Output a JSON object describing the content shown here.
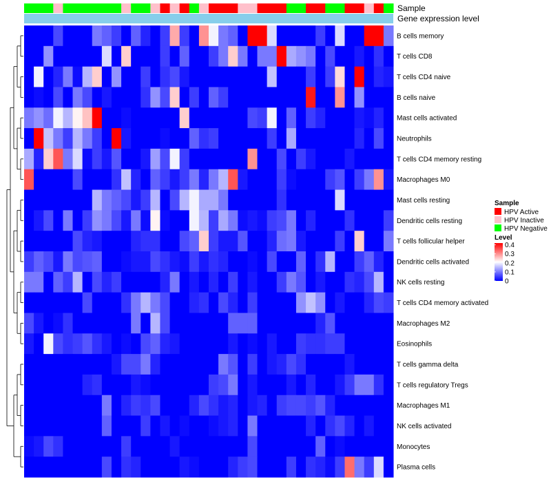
{
  "chart_data": {
    "type": "heatmap",
    "title": "",
    "rows": [
      "B cells memory",
      "T cells CD8",
      "T cells CD4 naive",
      "B cells naive",
      "Mast cells activated",
      "Neutrophils",
      "T cells CD4 memory resting",
      "Macrophages M0",
      "Mast cells resting",
      "Dendritic cells resting",
      "T cells follicular helper",
      "Dendritic cells activated",
      "NK cells resting",
      "T cells CD4 memory activated",
      "Macrophages M2",
      "Eosinophils",
      "T cells gamma delta",
      "T cells regulatory  Tregs",
      "Macrophages M1",
      "NK cells activated",
      "Monocytes",
      "Plasma cells"
    ],
    "sample_groups": [
      "HPV Negative",
      "HPV Negative",
      "HPV Negative",
      "HPV Inactive",
      "HPV Negative",
      "HPV Negative",
      "HPV Negative",
      "HPV Negative",
      "HPV Negative",
      "HPV Negative",
      "HPV Inactive",
      "HPV Negative",
      "HPV Negative",
      "HPV Inactive",
      "HPV Active",
      "HPV Inactive",
      "HPV Active",
      "HPV Negative",
      "HPV Inactive",
      "HPV Active",
      "HPV Active",
      "HPV Active",
      "HPV Inactive",
      "HPV Inactive",
      "HPV Active",
      "HPV Active",
      "HPV Active",
      "HPV Negative",
      "HPV Negative",
      "HPV Active",
      "HPV Active",
      "HPV Negative",
      "HPV Negative",
      "HPV Active",
      "HPV Active",
      "HPV Inactive",
      "HPV Active",
      "HPV Negative"
    ],
    "values": [
      [
        0,
        0,
        0,
        0.06,
        0,
        0,
        0,
        0.1,
        0.08,
        0.05,
        0,
        0.08,
        0.03,
        0,
        0.05,
        0.28,
        0.05,
        0,
        0.3,
        0.2,
        0.1,
        0.08,
        0,
        0.42,
        0.42,
        0.18,
        0,
        0,
        0,
        0,
        0.05,
        0,
        0.18,
        0,
        0,
        0.42,
        0.42,
        0.1
      ],
      [
        0,
        0,
        0.12,
        0,
        0,
        0,
        0,
        0,
        0.18,
        0,
        0.25,
        0,
        0,
        0,
        0.05,
        0,
        0.08,
        0,
        0,
        0.05,
        0.1,
        0.25,
        0.1,
        0,
        0.1,
        0.1,
        0.42,
        0.14,
        0.12,
        0.1,
        0,
        0.06,
        0,
        0,
        0.02,
        0,
        0.04,
        0
      ],
      [
        0,
        0.2,
        0,
        0.03,
        0.1,
        0.01,
        0.15,
        0.25,
        0,
        0.12,
        0,
        0,
        0.05,
        0,
        0.04,
        0.06,
        0.02,
        0,
        0,
        0,
        0,
        0,
        0,
        0,
        0,
        0.16,
        0,
        0,
        0,
        0.05,
        0,
        0.05,
        0.24,
        0,
        0.42,
        0,
        0.03,
        0.02
      ],
      [
        0,
        0.01,
        0,
        0.06,
        0,
        0.1,
        0.06,
        0,
        0.02,
        0,
        0,
        0,
        0.04,
        0.12,
        0.06,
        0.25,
        0,
        0.05,
        0,
        0.08,
        0.05,
        0,
        0,
        0,
        0,
        0,
        0,
        0,
        0,
        0.4,
        0,
        0,
        0.3,
        0,
        0.12,
        0,
        0,
        0
      ],
      [
        0.1,
        0.12,
        0.09,
        0.2,
        0.15,
        0.22,
        0.26,
        0.42,
        0,
        0,
        0.01,
        0,
        0,
        0,
        0,
        0,
        0.25,
        0,
        0,
        0,
        0,
        0,
        0,
        0.06,
        0.05,
        0.2,
        0,
        0.08,
        0,
        0.05,
        0.03,
        0,
        0,
        0,
        0.02,
        0.01,
        0.03,
        0
      ],
      [
        0,
        0.42,
        0.16,
        0.1,
        0.05,
        0.15,
        0.1,
        0.05,
        0,
        0.42,
        0.02,
        0,
        0,
        0,
        0.01,
        0,
        0,
        0.08,
        0.04,
        0.05,
        0,
        0,
        0,
        0,
        0,
        0.05,
        0,
        0.14,
        0,
        0,
        0,
        0,
        0,
        0,
        0.03,
        0,
        0.06,
        0
      ],
      [
        0.14,
        0.03,
        0.25,
        0.35,
        0.1,
        0.18,
        0.01,
        0.05,
        0.02,
        0.07,
        0,
        0,
        0.02,
        0.13,
        0.06,
        0.2,
        0.05,
        0,
        0,
        0,
        0,
        0,
        0,
        0.3,
        0,
        0,
        0.06,
        0,
        0.05,
        0.02,
        0,
        0,
        0,
        0.02,
        0,
        0,
        0,
        0
      ],
      [
        0.35,
        0,
        0,
        0,
        0,
        0.06,
        0,
        0,
        0,
        0.04,
        0.16,
        0.03,
        0,
        0.08,
        0.05,
        0.02,
        0.05,
        0.1,
        0.03,
        0.1,
        0.15,
        0.35,
        0.02,
        0,
        0,
        0,
        0.05,
        0.01,
        0,
        0,
        0,
        0.05,
        0.07,
        0,
        0.05,
        0.1,
        0.3,
        0.02
      ],
      [
        0,
        0,
        0,
        0,
        0,
        0,
        0,
        0.15,
        0.1,
        0.08,
        0.06,
        0.02,
        0.05,
        0.15,
        0,
        0.06,
        0.15,
        0.2,
        0.14,
        0.14,
        0.1,
        0,
        0,
        0,
        0,
        0,
        0.04,
        0,
        0,
        0,
        0,
        0,
        0.18,
        0,
        0,
        0,
        0,
        0
      ],
      [
        0,
        0.02,
        0.06,
        0,
        0.1,
        0,
        0.05,
        0.12,
        0.1,
        0.06,
        0.02,
        0.1,
        0.01,
        0.22,
        0.01,
        0,
        0,
        0.2,
        0.15,
        0.05,
        0.14,
        0.1,
        0.01,
        0.02,
        0.01,
        0.05,
        0.06,
        0.1,
        0,
        0.03,
        0,
        0,
        0,
        0.04,
        0,
        0,
        0,
        0.05
      ],
      [
        0,
        0,
        0,
        0,
        0,
        0.06,
        0.03,
        0.02,
        0,
        0,
        0,
        0.03,
        0.04,
        0.04,
        0,
        0,
        0.06,
        0.08,
        0.25,
        0.05,
        0.02,
        0.02,
        0.07,
        0,
        0,
        0.03,
        0.09,
        0.1,
        0.02,
        0,
        0,
        0,
        0.05,
        0,
        0.25,
        0,
        0,
        0.1
      ],
      [
        0.05,
        0.08,
        0.06,
        0.02,
        0.1,
        0.06,
        0.07,
        0.08,
        0,
        0,
        0.01,
        0.02,
        0.02,
        0.06,
        0.04,
        0.02,
        0.01,
        0.05,
        0.02,
        0.04,
        0.03,
        0,
        0,
        0.01,
        0,
        0.06,
        0,
        0,
        0.08,
        0,
        0.04,
        0.15,
        0,
        0,
        0.05,
        0.08,
        0.03,
        0
      ],
      [
        0.1,
        0.1,
        0,
        0.08,
        0.05,
        0.15,
        0,
        0.06,
        0.03,
        0.05,
        0,
        0,
        0,
        0,
        0.03,
        0.1,
        0,
        0.02,
        0,
        0.03,
        0,
        0.05,
        0,
        0.02,
        0,
        0,
        0.05,
        0.1,
        0.07,
        0,
        0.02,
        0,
        0,
        0.04,
        0.03,
        0.06,
        0.15,
        0
      ],
      [
        0,
        0,
        0,
        0,
        0,
        0,
        0.06,
        0,
        0,
        0,
        0.04,
        0.1,
        0.15,
        0.1,
        0.06,
        0,
        0,
        0.03,
        0.04,
        0,
        0.06,
        0.03,
        0,
        0.05,
        0,
        0,
        0,
        0,
        0.12,
        0.16,
        0.12,
        0,
        0.02,
        0,
        0,
        0.03,
        0.06,
        0.05
      ],
      [
        0.06,
        0.02,
        0,
        0.01,
        0.04,
        0,
        0,
        0,
        0,
        0,
        0,
        0.1,
        0,
        0.15,
        0.06,
        0,
        0,
        0,
        0,
        0,
        0,
        0.08,
        0.08,
        0.08,
        0,
        0,
        0,
        0,
        0,
        0,
        0.03,
        0.07,
        0,
        0,
        0,
        0,
        0,
        0
      ],
      [
        0.02,
        0,
        0.2,
        0.06,
        0.04,
        0.05,
        0.07,
        0.04,
        0.02,
        0,
        0.01,
        0,
        0.06,
        0.08,
        0.03,
        0.02,
        0,
        0,
        0,
        0,
        0,
        0.02,
        0,
        0.01,
        0,
        0.02,
        0,
        0,
        0.05,
        0.04,
        0.04,
        0.05,
        0.05,
        0,
        0,
        0,
        0,
        0
      ],
      [
        0,
        0,
        0,
        0,
        0,
        0,
        0,
        0,
        0,
        0.02,
        0.06,
        0.06,
        0.1,
        0.03,
        0,
        0,
        0,
        0,
        0,
        0,
        0.1,
        0.07,
        0,
        0.05,
        0,
        0.02,
        0.03,
        0.06,
        0.04,
        0,
        0,
        0,
        0,
        0.02,
        0,
        0,
        0,
        0
      ],
      [
        0,
        0,
        0,
        0,
        0,
        0,
        0.03,
        0.04,
        0,
        0,
        0,
        0.02,
        0.01,
        0,
        0,
        0,
        0,
        0,
        0,
        0.05,
        0.06,
        0.1,
        0,
        0.02,
        0,
        0,
        0,
        0.02,
        0,
        0.03,
        0,
        0,
        0.02,
        0.05,
        0.1,
        0.1,
        0.04,
        0
      ],
      [
        0,
        0,
        0,
        0,
        0,
        0,
        0,
        0,
        0.1,
        0,
        0.03,
        0.05,
        0.04,
        0.06,
        0,
        0,
        0,
        0.03,
        0.06,
        0.04,
        0.02,
        0.03,
        0,
        0.02,
        0.03,
        0,
        0.05,
        0.06,
        0.06,
        0.05,
        0.07,
        0.03,
        0,
        0,
        0,
        0,
        0,
        0
      ],
      [
        0,
        0,
        0,
        0,
        0,
        0,
        0,
        0,
        0.08,
        0,
        0,
        0,
        0.05,
        0,
        0.02,
        0,
        0.01,
        0,
        0,
        0.01,
        0.02,
        0.03,
        0,
        0.1,
        0,
        0,
        0,
        0,
        0,
        0.03,
        0,
        0.04,
        0.06,
        0.03,
        0,
        0.02,
        0,
        0
      ],
      [
        0.01,
        0.02,
        0.06,
        0.04,
        0,
        0,
        0,
        0,
        0,
        0,
        0.05,
        0,
        0,
        0,
        0,
        0.02,
        0,
        0,
        0,
        0,
        0,
        0,
        0,
        0.06,
        0,
        0,
        0,
        0,
        0,
        0,
        0.08,
        0,
        0.01,
        0,
        0,
        0,
        0,
        0
      ],
      [
        0,
        0,
        0,
        0,
        0,
        0,
        0,
        0,
        0.06,
        0,
        0.04,
        0.03,
        0,
        0,
        0,
        0,
        0.02,
        0.01,
        0,
        0,
        0,
        0.03,
        0.05,
        0.06,
        0,
        0,
        0,
        0.05,
        0,
        0.04,
        0.03,
        0.01,
        0.05,
        0.33,
        0.1,
        0.05,
        0.18,
        0
      ]
    ],
    "annotation_labels": [
      "Sample",
      "Gene expression level"
    ],
    "legend_sample": {
      "title": "Sample",
      "entries": [
        "HPV Active",
        "HPV Inactive",
        "HPV Negative"
      ],
      "colors": [
        "#ff0000",
        "#ffc0cb",
        "#00ff00"
      ]
    },
    "legend_level": {
      "title": "Level",
      "ticks": [
        0.4,
        0.3,
        0.2,
        0.1,
        0
      ],
      "tick_labels": [
        "0.4",
        "0.3",
        "0.2",
        "0.1",
        "0"
      ],
      "range": [
        0,
        0.42
      ]
    },
    "color_scale": {
      "low": "#0000ff",
      "mid": "#ffffff",
      "high": "#ff0000"
    },
    "expression_bar_color": "#87ceeb"
  }
}
